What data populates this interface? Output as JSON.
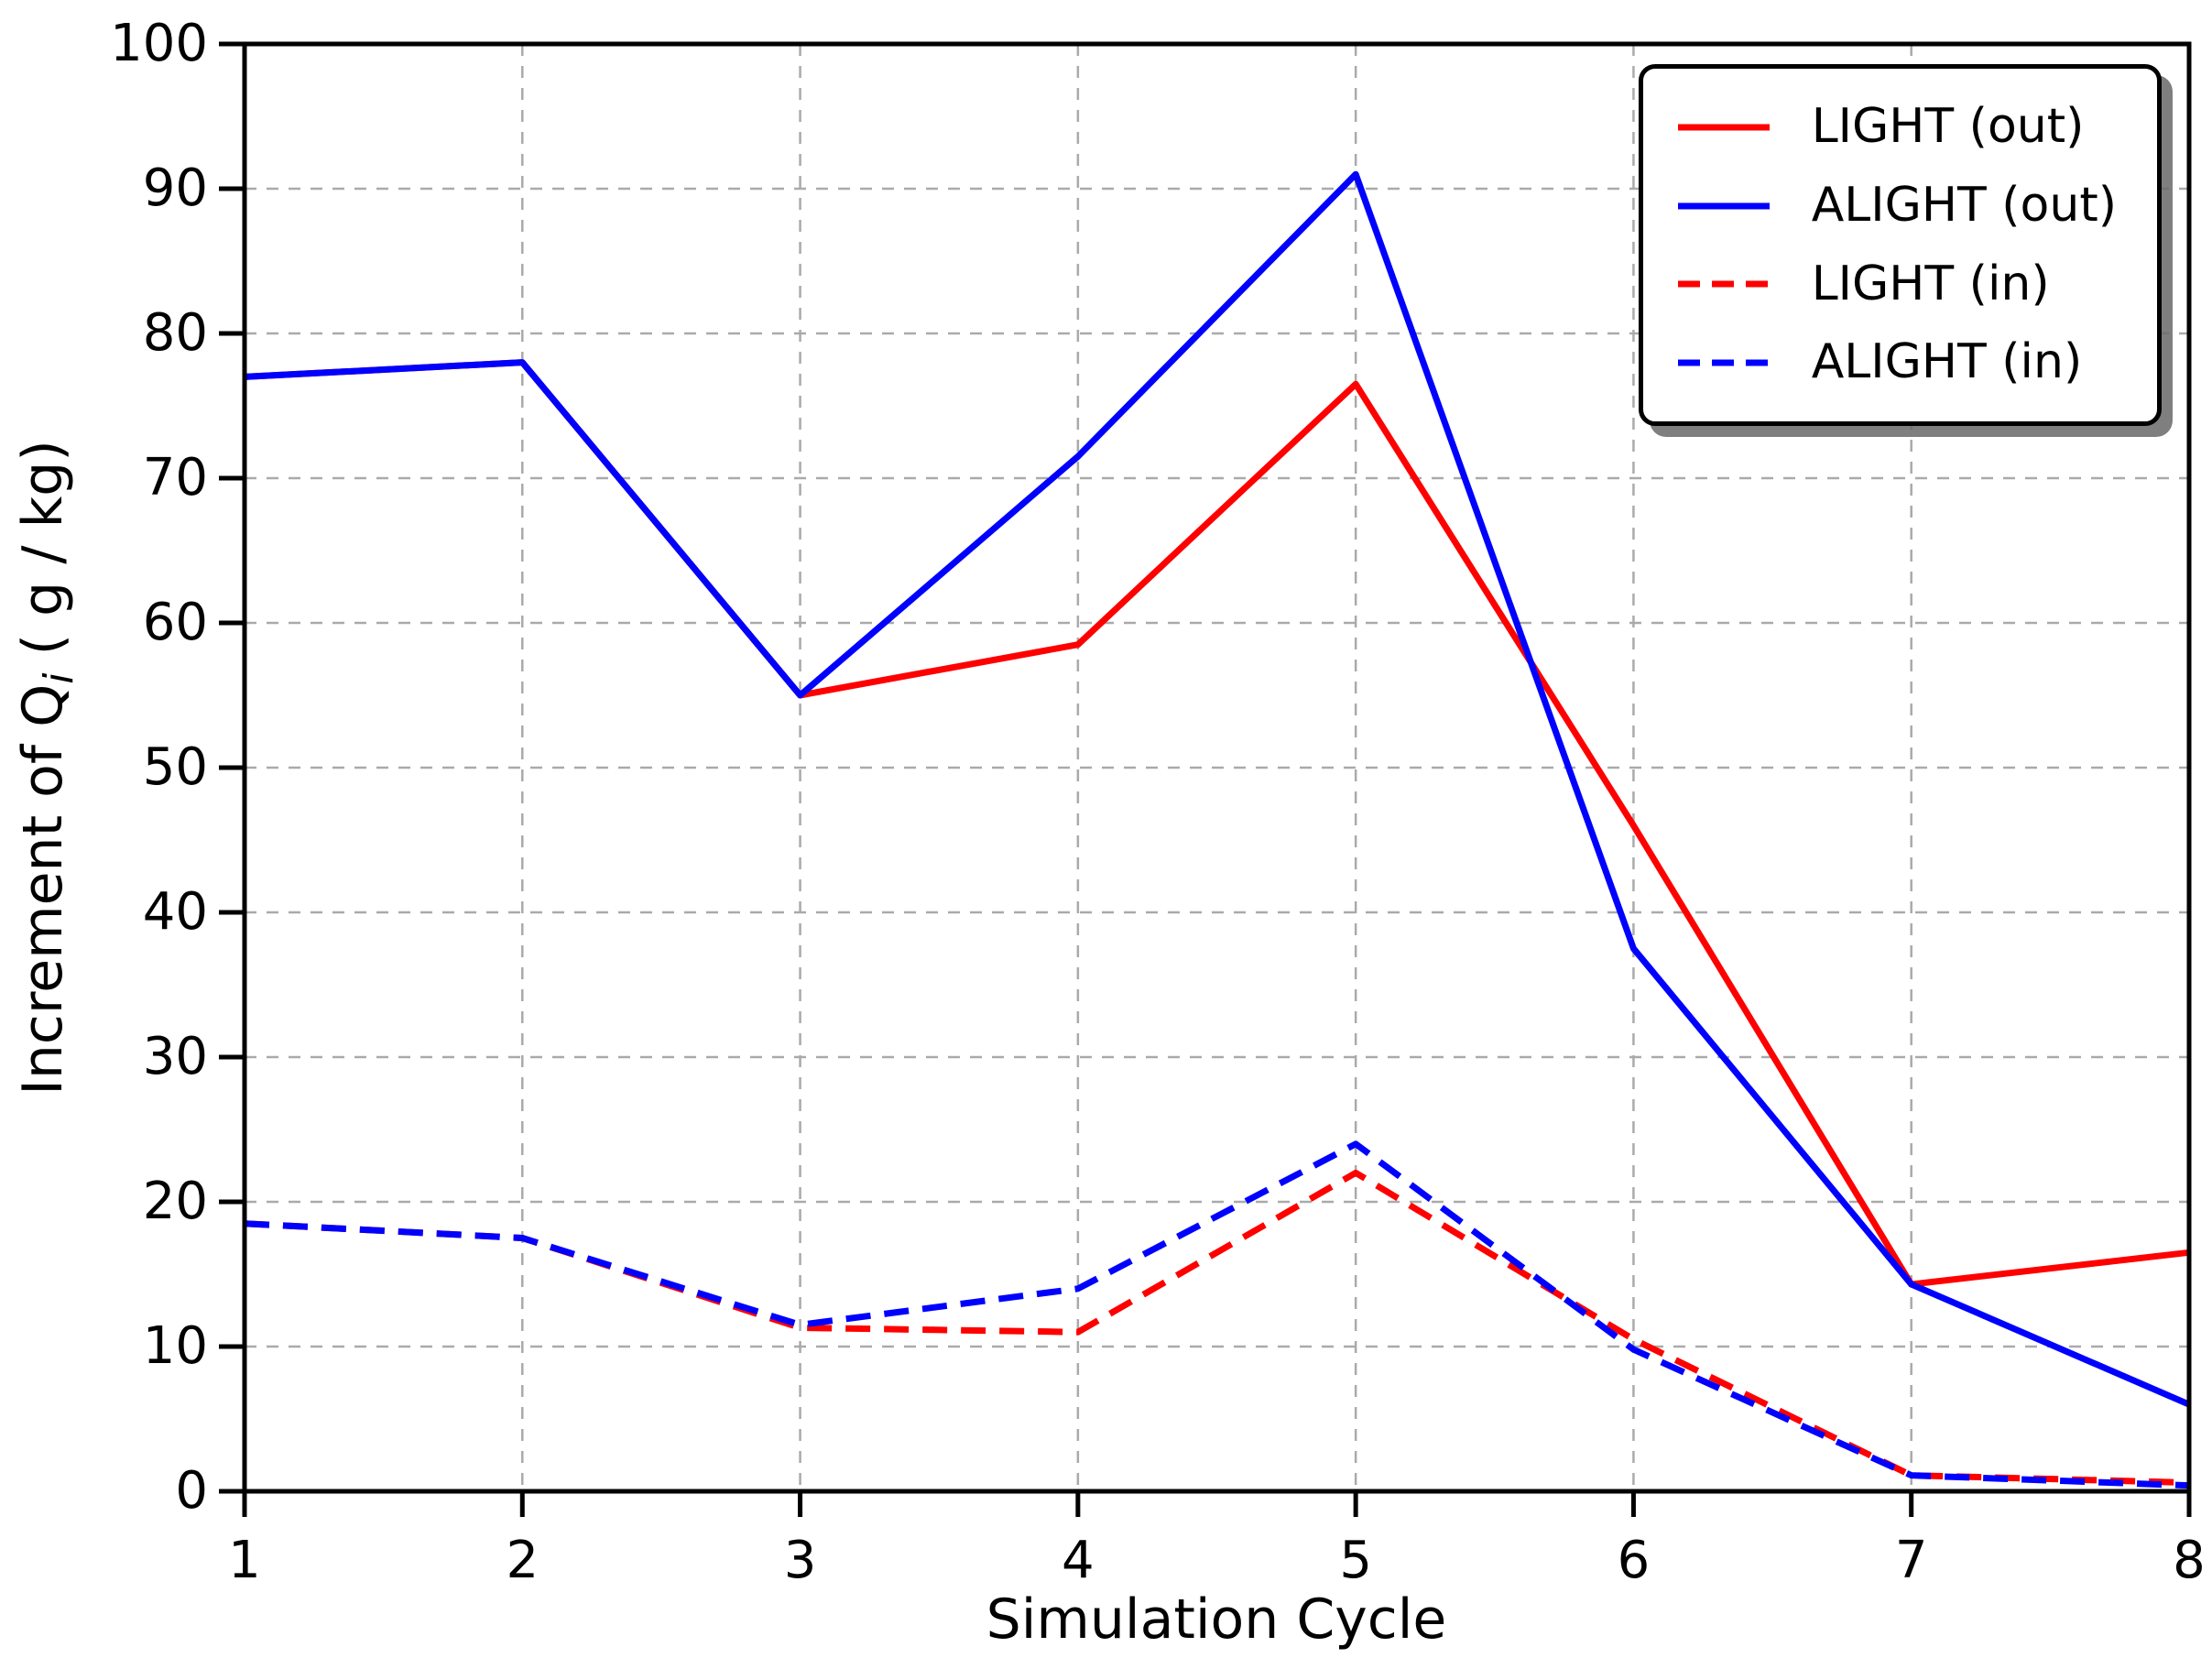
{
  "figure": {
    "background": "#ffffff"
  },
  "colors": {
    "red_series": "#ff0000",
    "blue_series": "#0000ff",
    "axis": "#000000",
    "grid": "#aaaaaa",
    "legend_border": "#000000",
    "legend_shadow": "#696969"
  },
  "chart_data": {
    "type": "line",
    "title": "",
    "xlabel": "Simulation Cycle",
    "ylabel": "Increment of Q_i ( g / kg)",
    "ylabel_parts": {
      "prefix": "Increment of Q",
      "subscript": "i",
      "suffix": " ( g / kg)"
    },
    "x": [
      1,
      2,
      3,
      4,
      5,
      6,
      7,
      8
    ],
    "xtick_labels": [
      "1",
      "2",
      "3",
      "4",
      "5",
      "6",
      "7",
      "8"
    ],
    "ytick_values": [
      0,
      10,
      20,
      30,
      40,
      50,
      60,
      70,
      80,
      90,
      100
    ],
    "ytick_labels": [
      "0",
      "10",
      "20",
      "30",
      "40",
      "50",
      "60",
      "70",
      "80",
      "90",
      "100"
    ],
    "xlim": [
      1,
      8
    ],
    "ylim": [
      0,
      100
    ],
    "grid": {
      "on": true,
      "style": "dashed",
      "color": "#aaaaaa"
    },
    "legend_position": "top-right",
    "series": [
      {
        "name": "LIGHT (out)",
        "color": "#ff0000",
        "style": "solid",
        "values": [
          77,
          78,
          55,
          58.5,
          76.5,
          46,
          14.3,
          16.5
        ]
      },
      {
        "name": "ALIGHT (out)",
        "color": "#0000ff",
        "style": "solid",
        "values": [
          77,
          78,
          55,
          71.5,
          91,
          37.5,
          14.3,
          6
        ]
      },
      {
        "name": "LIGHT (in)",
        "color": "#ff0000",
        "style": "dashed",
        "values": [
          18.5,
          17.5,
          11.3,
          11,
          22,
          10.5,
          1.1,
          0.6
        ]
      },
      {
        "name": "ALIGHT (in)",
        "color": "#0000ff",
        "style": "dashed",
        "values": [
          18.5,
          17.5,
          11.5,
          14,
          24,
          9.8,
          1.1,
          0.4
        ]
      }
    ]
  }
}
